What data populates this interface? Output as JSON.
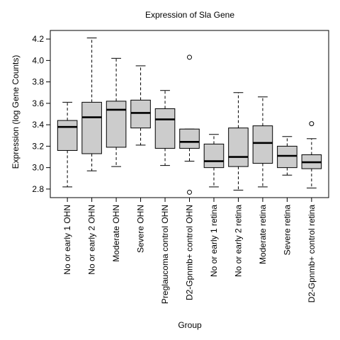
{
  "chart_data": {
    "type": "box",
    "title": "Expression of  Sla Gene",
    "xlabel": "Group",
    "ylabel": "Expression (log Gene Counts)",
    "ylim": [
      2.72,
      4.28
    ],
    "yticks": [
      "2.8",
      "3.0",
      "3.2",
      "3.4",
      "3.6",
      "3.8",
      "4.0",
      "4.2"
    ],
    "box_color": "#cccccc",
    "categories": [
      "No or early 1 OHN",
      "No or early 2 OHN",
      "Moderate OHN",
      "Severe OHN",
      "Preglaucoma control OHN",
      "D2-Gpnmb+ control OHN",
      "No or early 1 retina",
      "No or early 2 retina",
      "Moderate retina",
      "Severe retina",
      "D2-Gpnmb+ control retina"
    ],
    "boxes": [
      {
        "whisker_low": 2.82,
        "q1": 3.16,
        "median": 3.38,
        "q3": 3.44,
        "whisker_high": 3.61,
        "outliers": []
      },
      {
        "whisker_low": 2.97,
        "q1": 3.13,
        "median": 3.47,
        "q3": 3.61,
        "whisker_high": 4.21,
        "outliers": []
      },
      {
        "whisker_low": 3.01,
        "q1": 3.19,
        "median": 3.54,
        "q3": 3.62,
        "whisker_high": 4.02,
        "outliers": []
      },
      {
        "whisker_low": 3.21,
        "q1": 3.37,
        "median": 3.51,
        "q3": 3.63,
        "whisker_high": 3.95,
        "outliers": []
      },
      {
        "whisker_low": 3.02,
        "q1": 3.18,
        "median": 3.45,
        "q3": 3.55,
        "whisker_high": 3.72,
        "outliers": []
      },
      {
        "whisker_low": 3.06,
        "q1": 3.18,
        "median": 3.24,
        "q3": 3.36,
        "whisker_high": 3.36,
        "outliers": [
          4.03,
          2.77
        ]
      },
      {
        "whisker_low": 2.82,
        "q1": 3.0,
        "median": 3.06,
        "q3": 3.22,
        "whisker_high": 3.31,
        "outliers": []
      },
      {
        "whisker_low": 2.79,
        "q1": 3.01,
        "median": 3.1,
        "q3": 3.37,
        "whisker_high": 3.7,
        "outliers": []
      },
      {
        "whisker_low": 2.82,
        "q1": 3.04,
        "median": 3.23,
        "q3": 3.39,
        "whisker_high": 3.66,
        "outliers": []
      },
      {
        "whisker_low": 2.93,
        "q1": 3.0,
        "median": 3.11,
        "q3": 3.2,
        "whisker_high": 3.29,
        "outliers": []
      },
      {
        "whisker_low": 2.81,
        "q1": 2.99,
        "median": 3.05,
        "q3": 3.12,
        "whisker_high": 3.27,
        "outliers": [
          3.41
        ]
      }
    ]
  }
}
